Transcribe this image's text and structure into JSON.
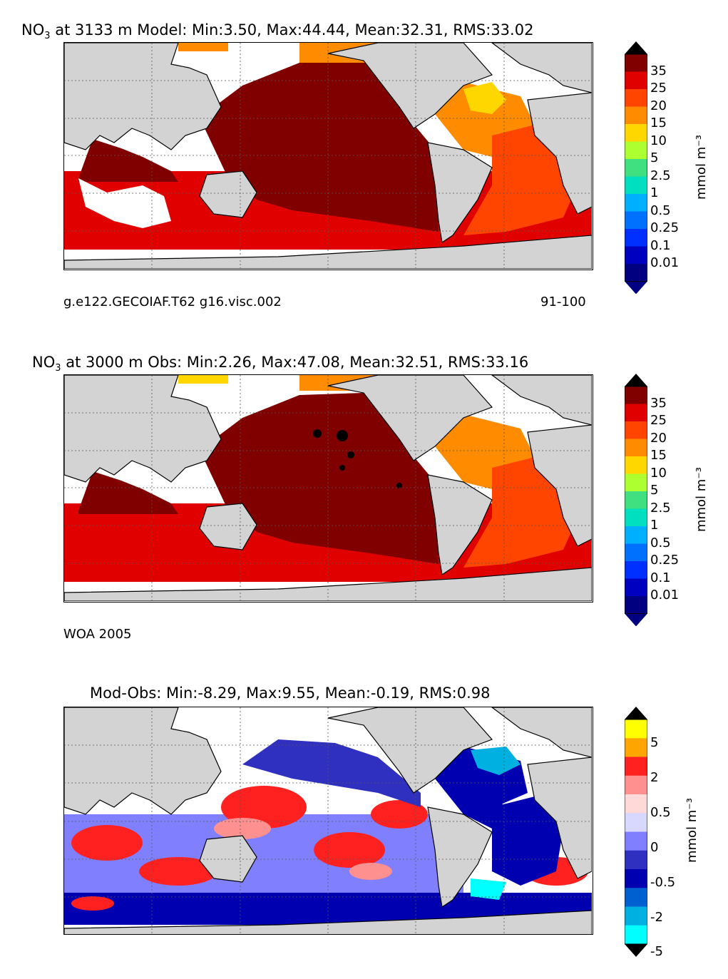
{
  "panels": [
    {
      "title_species": "NO",
      "title_sub": "3",
      "title_rest": " at 3133 m Model: Min:3.50, Max:44.44, Mean:32.31, RMS:33.02",
      "note_left": "g.e122.GECOIAF.T62 g16.visc.002",
      "note_right": "91-100"
    },
    {
      "title_species": "NO",
      "title_sub": "3",
      "title_rest": " at 3000 m Obs: Min:2.26, Max:47.08, Mean:32.51, RMS:33.16",
      "note_left": "WOA 2005",
      "note_right": ""
    },
    {
      "title_species": "",
      "title_sub": "",
      "title_rest": "Mod-Obs: Min:-8.29, Max:9.55, Mean:-0.19, RMS:0.98",
      "note_left": "",
      "note_right": ""
    }
  ],
  "colorbars": {
    "concentration": {
      "levels": [
        "35",
        "25",
        "20",
        "15",
        "10",
        "5",
        "2.5",
        "1",
        "0.5",
        "0.25",
        "0.1",
        "0.01"
      ],
      "colors": [
        "#800000",
        "#e00000",
        "#ff4500",
        "#ff8c00",
        "#ffd700",
        "#adff2f",
        "#40e080",
        "#00e0c0",
        "#00b0ff",
        "#0070ff",
        "#0030ff",
        "#0000c0",
        "#000080"
      ],
      "top_color": "#000000",
      "units": "mmol m⁻³"
    },
    "difference": {
      "levels": [
        "5",
        "2",
        "0.5",
        "0",
        "-0.5",
        "-2",
        "-5"
      ],
      "labeled_colors": [
        "#ffff00",
        "#ffa500",
        "#ff2020",
        "#ff9090",
        "#ffd8d8",
        "#d8d8ff",
        "#8080ff",
        "#3030c0",
        "#0000b0",
        "#0060d0",
        "#00b0e0",
        "#00ffff"
      ],
      "units": "mmol m⁻³"
    }
  },
  "colors": {
    "land": "#d3d3d3",
    "no_data": "#ffffff",
    "grid": "#555555"
  }
}
